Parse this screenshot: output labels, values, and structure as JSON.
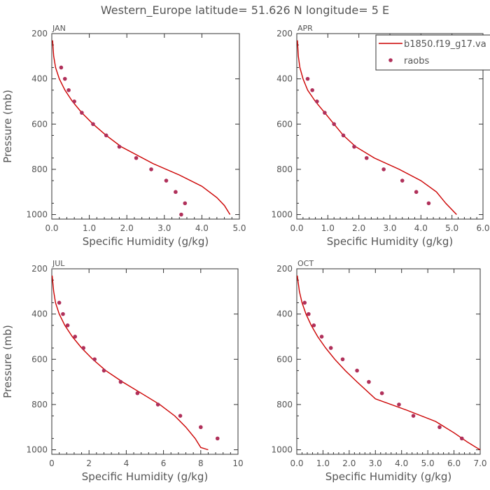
{
  "title": "Western_Europe  latitude= 51.626 N longitude= 5 E",
  "legend": {
    "model_label": "b1850.f19_g17.va",
    "obs_label": "raobs",
    "placement": "top-right of APR panel"
  },
  "colors": {
    "model": "#cc0000",
    "obs": "#b0305a",
    "axis": "#333333",
    "text": "#555555"
  },
  "chart_data": [
    {
      "type": "line",
      "panel": "JAN",
      "xlabel": "Specific Humidity (g/kg)",
      "ylabel": "Pressure (mb)",
      "xlim": [
        0,
        5
      ],
      "ylim": [
        1020,
        200
      ],
      "xticks": [
        "0.0",
        "1.0",
        "2.0",
        "3.0",
        "4.0",
        "5.0"
      ],
      "yticks": [
        "200",
        "400",
        "600",
        "800",
        "1000"
      ],
      "series": [
        {
          "name": "b1850.f19_g17.va",
          "kind": "line",
          "x": [
            0.02,
            0.05,
            0.1,
            0.2,
            0.35,
            0.55,
            0.8,
            1.1,
            1.45,
            1.85,
            2.7,
            3.4,
            4.0,
            4.4,
            4.6,
            4.75
          ],
          "y": [
            230,
            300,
            350,
            400,
            450,
            500,
            550,
            600,
            650,
            700,
            775,
            825,
            875,
            925,
            960,
            1000
          ]
        },
        {
          "name": "raobs",
          "kind": "scatter",
          "x": [
            0.25,
            0.35,
            0.45,
            0.6,
            0.8,
            1.1,
            1.45,
            1.8,
            2.25,
            2.65,
            3.05,
            3.3,
            3.55,
            3.45
          ],
          "y": [
            350,
            400,
            450,
            500,
            550,
            600,
            650,
            700,
            750,
            800,
            850,
            900,
            950,
            1000
          ]
        }
      ]
    },
    {
      "type": "line",
      "panel": "APR",
      "xlabel": "Specific Humidity (g/kg)",
      "ylabel": "",
      "xlim": [
        0,
        6
      ],
      "ylim": [
        1020,
        200
      ],
      "xticks": [
        "0.0",
        "1.0",
        "2.0",
        "3.0",
        "4.0",
        "5.0",
        "6.0"
      ],
      "yticks": [
        "200",
        "400",
        "600",
        "800",
        "1000"
      ],
      "series": [
        {
          "name": "b1850.f19_g17.va",
          "kind": "line",
          "x": [
            0.02,
            0.05,
            0.1,
            0.2,
            0.35,
            0.6,
            0.9,
            1.2,
            1.5,
            1.9,
            2.5,
            3.3,
            4.0,
            4.5,
            4.8,
            5.15
          ],
          "y": [
            230,
            300,
            350,
            400,
            450,
            500,
            550,
            600,
            650,
            700,
            750,
            800,
            850,
            900,
            950,
            1000
          ]
        },
        {
          "name": "raobs",
          "kind": "scatter",
          "x": [
            0.35,
            0.5,
            0.65,
            0.9,
            1.2,
            1.5,
            1.85,
            2.25,
            2.8,
            3.4,
            3.85,
            4.25
          ],
          "y": [
            400,
            450,
            500,
            550,
            600,
            650,
            700,
            750,
            800,
            850,
            900,
            950
          ]
        }
      ]
    },
    {
      "type": "line",
      "panel": "JUL",
      "xlabel": "Specific Humidity (g/kg)",
      "ylabel": "Pressure (mb)",
      "xlim": [
        0,
        10
      ],
      "ylim": [
        1020,
        200
      ],
      "xticks": [
        "0",
        "2",
        "4",
        "6",
        "8",
        "10"
      ],
      "yticks": [
        "200",
        "400",
        "600",
        "800",
        "1000"
      ],
      "series": [
        {
          "name": "b1850.f19_g17.va",
          "kind": "line",
          "x": [
            0.02,
            0.1,
            0.2,
            0.4,
            0.7,
            1.1,
            1.6,
            2.2,
            2.9,
            3.8,
            4.8,
            5.8,
            6.6,
            7.2,
            7.7,
            8.0,
            8.4
          ],
          "y": [
            230,
            300,
            350,
            400,
            450,
            500,
            550,
            600,
            650,
            700,
            750,
            800,
            850,
            900,
            950,
            990,
            1000
          ]
        },
        {
          "name": "raobs",
          "kind": "scatter",
          "x": [
            0.4,
            0.6,
            0.85,
            1.25,
            1.7,
            2.3,
            2.8,
            3.7,
            4.6,
            5.7,
            6.9,
            8.0,
            8.9
          ],
          "y": [
            350,
            400,
            450,
            500,
            550,
            600,
            650,
            700,
            750,
            800,
            850,
            900,
            950
          ]
        }
      ]
    },
    {
      "type": "line",
      "panel": "OCT",
      "xlabel": "Specific Humidity (g/kg)",
      "ylabel": "",
      "xlim": [
        0,
        7
      ],
      "ylim": [
        1020,
        200
      ],
      "xticks": [
        "0.0",
        "1.0",
        "2.0",
        "3.0",
        "4.0",
        "5.0",
        "6.0",
        "7.0"
      ],
      "yticks": [
        "200",
        "400",
        "600",
        "800",
        "1000"
      ],
      "series": [
        {
          "name": "b1850.f19_g17.va",
          "kind": "line",
          "x": [
            0.02,
            0.1,
            0.2,
            0.35,
            0.55,
            0.8,
            1.1,
            1.45,
            1.85,
            2.3,
            3.0,
            4.2,
            5.3,
            6.0,
            6.5,
            6.85,
            7.0
          ],
          "y": [
            230,
            300,
            350,
            400,
            450,
            500,
            550,
            600,
            650,
            700,
            775,
            825,
            875,
            925,
            965,
            990,
            1000
          ]
        },
        {
          "name": "raobs",
          "kind": "scatter",
          "x": [
            0.3,
            0.45,
            0.65,
            0.95,
            1.3,
            1.75,
            2.3,
            2.75,
            3.25,
            3.9,
            4.45,
            5.45,
            6.3
          ],
          "y": [
            350,
            400,
            450,
            500,
            550,
            600,
            650,
            700,
            750,
            800,
            850,
            900,
            950
          ]
        }
      ]
    }
  ]
}
